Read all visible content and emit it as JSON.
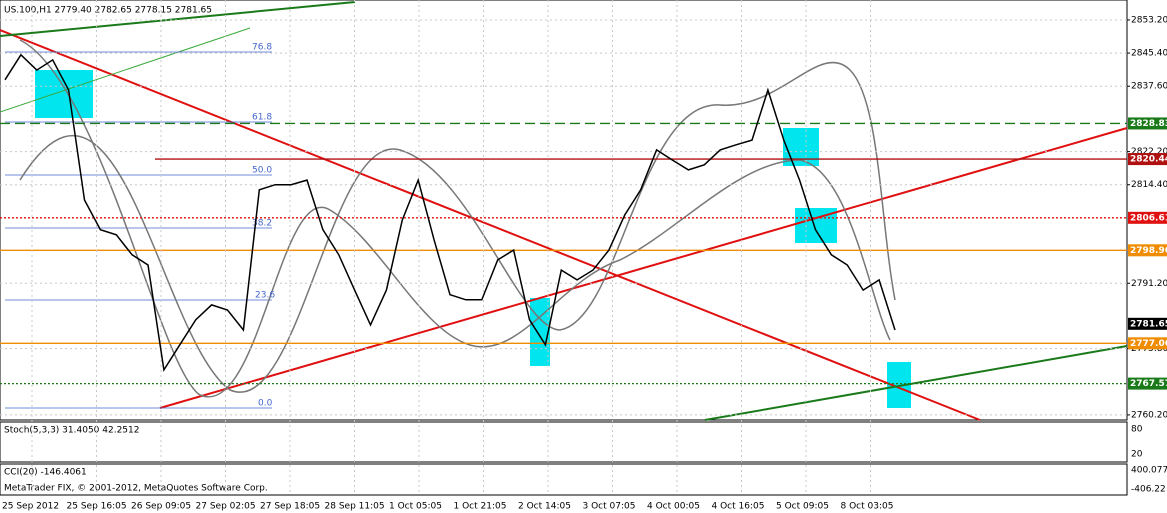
{
  "chart_data": {
    "type": "line",
    "title": "US.100,H1  2779.40 2782.65 2778.15 2781.65",
    "footer": "MetaTrader FIX, © 2001-2012, MetaQuotes Software Corp.",
    "series": [
      {
        "name": "close",
        "color": "#000000",
        "values": [
          2839.1,
          2845.0,
          2841.4,
          2843.8,
          2836.7,
          2810.8,
          2803.8,
          2802.6,
          2797.9,
          2795.5,
          2770.8,
          2776.7,
          2782.6,
          2786.1,
          2784.9,
          2780.2,
          2813.2,
          2814.4,
          2814.4,
          2815.5,
          2803.8,
          2797.9,
          2789.6,
          2781.4,
          2789.6,
          2806.1,
          2815.5,
          2801.4,
          2788.5,
          2787.3,
          2787.3,
          2796.7,
          2799.0,
          2782.6,
          2776.7,
          2794.3,
          2792.0,
          2794.3,
          2799.0,
          2807.3,
          2813.2,
          2822.6,
          2820.2,
          2817.9,
          2819.1,
          2822.6,
          2823.8,
          2824.9,
          2836.7,
          2824.9,
          2815.5,
          2803.8,
          2797.9,
          2795.5,
          2789.6,
          2792.0,
          2780.2
        ]
      }
    ],
    "ylim": [
      2759.0,
      2857.9
    ],
    "yticks": [
      {
        "value": 2853.2,
        "label": "2853.20"
      },
      {
        "value": 2845.4,
        "label": "2845.40"
      },
      {
        "value": 2837.6,
        "label": "2837.60"
      },
      {
        "value": 2822.2,
        "label": "2822.20"
      },
      {
        "value": 2814.4,
        "label": "2814.40"
      },
      {
        "value": 2791.2,
        "label": "2791.20"
      },
      {
        "value": 2775.8,
        "label": "2775.80"
      },
      {
        "value": 2760.2,
        "label": "2760.20"
      }
    ],
    "grid": true,
    "levels": [
      {
        "value": 2828.83,
        "color": "#1a7a1a",
        "style": "dashed"
      },
      {
        "value": 2820.44,
        "color": "#b01010",
        "style": "solid"
      },
      {
        "value": 2806.61,
        "color": "#e01010",
        "style": "dotted"
      },
      {
        "value": 2798.96,
        "color": "#f08c00",
        "style": "solid"
      },
      {
        "value": 2781.65,
        "color": "#000000",
        "style": "none"
      },
      {
        "value": 2777.06,
        "color": "#f08c00",
        "style": "solid"
      },
      {
        "value": 2767.57,
        "color": "#1a7a1a",
        "style": "dotted"
      }
    ],
    "fib_labels": [
      "76.8",
      "61.8",
      "50.0",
      "38.2",
      "23.6",
      "0.0"
    ],
    "time_labels": [
      "25 Sep 2012",
      "25 Sep 16:05",
      "26 Sep 09:05",
      "27 Sep 02:05",
      "27 Sep 18:05",
      "28 Sep 11:05",
      "1 Oct 05:05",
      "1 Oct 21:05",
      "2 Oct 14:05",
      "3 Oct 07:05",
      "4 Oct 00:05",
      "4 Oct 16:05",
      "5 Oct 09:05",
      "8 Oct 03:05"
    ],
    "stoch_label": "Stoch(5,3,3) 31.4050 42.2512",
    "stoch_ticks": [
      "80",
      "20"
    ],
    "cci_label": "CCI(20) -146.4061",
    "cci_ticks": [
      "400.077",
      "-406.22"
    ]
  }
}
